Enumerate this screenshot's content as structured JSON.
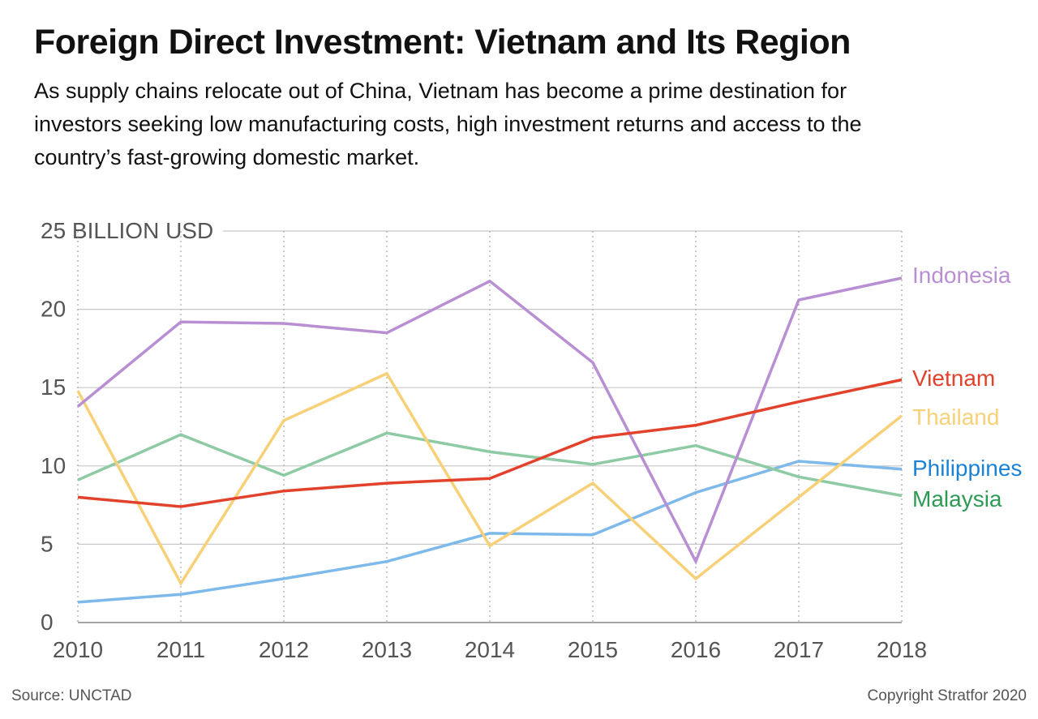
{
  "header": {
    "title": "Foreign Direct Investment: Vietnam and Its Region",
    "subtitle": "As supply chains relocate out of China, Vietnam has become a prime destination for investors seeking low manufacturing costs, high investment returns and access to the country’s fast-growing domestic market."
  },
  "footer": {
    "source": "Source: UNCTAD",
    "copyright": "Copyright Stratfor 2020"
  },
  "colors": {
    "gridline": "#c8c8c8",
    "axis": "#888888",
    "tick_label": "#555555"
  },
  "chart_data": {
    "type": "line",
    "title": "",
    "xlabel": "",
    "ylabel": "BILLION USD",
    "x": [
      "2010",
      "2011",
      "2012",
      "2013",
      "2014",
      "2015",
      "2016",
      "2017",
      "2018"
    ],
    "ylim": [
      0,
      25
    ],
    "yticks": [
      0,
      5,
      10,
      15,
      20,
      25
    ],
    "ytick_labels": [
      "0",
      "5",
      "10",
      "15",
      "20",
      "25 BILLION USD"
    ],
    "grid": "horizontal solid, vertical dotted",
    "legend": "inline labels at right end of lines",
    "series": [
      {
        "name": "Indonesia",
        "color": "#b98fd3",
        "values": [
          13.8,
          19.2,
          19.1,
          18.5,
          21.8,
          16.6,
          3.9,
          20.6,
          22.0
        ]
      },
      {
        "name": "Vietnam",
        "color": "#e2422c",
        "values": [
          8.0,
          7.4,
          8.4,
          8.9,
          9.2,
          11.8,
          12.6,
          14.1,
          15.5
        ]
      },
      {
        "name": "Thailand",
        "color": "#f8d078",
        "values": [
          14.8,
          2.5,
          12.9,
          15.9,
          4.9,
          8.9,
          2.8,
          8.0,
          13.2
        ]
      },
      {
        "name": "Philippines",
        "color": "#7db9ea",
        "values": [
          1.3,
          1.8,
          2.8,
          3.9,
          5.7,
          5.6,
          8.3,
          10.3,
          9.8
        ]
      },
      {
        "name": "Malaysia",
        "color": "#8ecba4",
        "values": [
          9.1,
          12.0,
          9.4,
          12.1,
          10.9,
          10.1,
          11.3,
          9.3,
          8.1
        ]
      }
    ],
    "label_colors": {
      "Indonesia": "#b98fd3",
      "Vietnam": "#e2422c",
      "Thailand": "#f8d078",
      "Philippines": "#1a83d6",
      "Malaysia": "#2e9b55"
    }
  }
}
